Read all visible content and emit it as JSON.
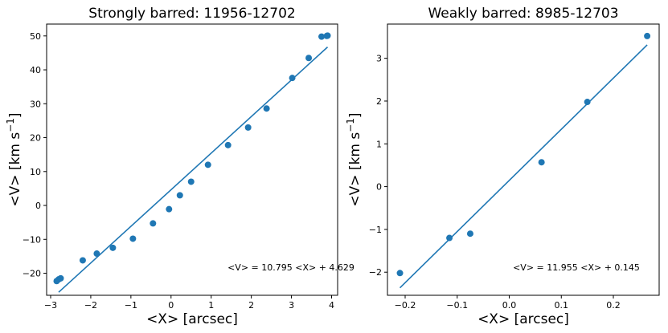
{
  "chart_data": [
    {
      "type": "scatter",
      "title": "Strongly barred: 11956-12702",
      "xlabel": "<X> [arcsec]",
      "ylabel_main": "<V> [km s",
      "ylabel_sup": "−1",
      "ylabel_end": "]",
      "xlim": [
        -3.1,
        4.15
      ],
      "ylim": [
        -26.5,
        53.5
      ],
      "xticks": [
        -3,
        -2,
        -1,
        0,
        1,
        2,
        3,
        4
      ],
      "xtick_labels": [
        "−3",
        "−2",
        "−1",
        "0",
        "1",
        "2",
        "3",
        "4"
      ],
      "yticks": [
        -20,
        -10,
        0,
        10,
        20,
        30,
        40,
        50
      ],
      "ytick_labels": [
        "−20",
        "−10",
        "0",
        "10",
        "20",
        "30",
        "40",
        "50"
      ],
      "color": "#1f77b4",
      "points": [
        {
          "x": -2.85,
          "y": -22.3
        },
        {
          "x": -2.8,
          "y": -21.8
        },
        {
          "x": -2.75,
          "y": -21.5
        },
        {
          "x": -2.2,
          "y": -16.2
        },
        {
          "x": -1.85,
          "y": -14.2
        },
        {
          "x": -1.45,
          "y": -12.5
        },
        {
          "x": -0.95,
          "y": -9.8
        },
        {
          "x": -0.45,
          "y": -5.3
        },
        {
          "x": -0.05,
          "y": -1.1
        },
        {
          "x": 0.22,
          "y": 3.0
        },
        {
          "x": 0.5,
          "y": 7.0
        },
        {
          "x": 0.92,
          "y": 12.0
        },
        {
          "x": 1.42,
          "y": 17.8
        },
        {
          "x": 1.92,
          "y": 23.0
        },
        {
          "x": 2.38,
          "y": 28.6
        },
        {
          "x": 3.02,
          "y": 37.6
        },
        {
          "x": 3.43,
          "y": 43.5
        },
        {
          "x": 3.75,
          "y": 49.8
        },
        {
          "x": 3.88,
          "y": 50.0
        },
        {
          "x": 3.9,
          "y": 50.1
        }
      ],
      "fit": {
        "slope": 10.795,
        "intercept": 4.629,
        "x_range": [
          -2.8,
          3.9
        ]
      },
      "annotation": "<V> = 10.795 <X> + 4.629"
    },
    {
      "type": "scatter",
      "title": "Weakly barred: 8985-12703",
      "xlabel": "<X> [arcsec]",
      "ylabel_main": "<V> [km s",
      "ylabel_sup": "−1",
      "ylabel_end": "]",
      "xlim": [
        -0.234,
        0.288
      ],
      "ylim": [
        -2.54,
        3.8
      ],
      "xticks": [
        -0.2,
        -0.1,
        0.0,
        0.1,
        0.2
      ],
      "xtick_labels": [
        "−0.2",
        "−0.1",
        "0.0",
        "0.1",
        "0.2"
      ],
      "yticks": [
        -2,
        -1,
        0,
        1,
        2,
        3
      ],
      "ytick_labels": [
        "−2",
        "−1",
        "0",
        "1",
        "2",
        "3"
      ],
      "color": "#1f77b4",
      "points": [
        {
          "x": -0.21,
          "y": -2.02
        },
        {
          "x": -0.115,
          "y": -1.2
        },
        {
          "x": -0.075,
          "y": -1.1
        },
        {
          "x": 0.062,
          "y": 0.57
        },
        {
          "x": 0.15,
          "y": 1.98
        },
        {
          "x": 0.265,
          "y": 3.52
        }
      ],
      "fit": {
        "slope": 11.955,
        "intercept": 0.145,
        "x_range": [
          -0.21,
          0.265
        ]
      },
      "annotation": "<V> = 11.955 <X> + 0.145"
    }
  ]
}
